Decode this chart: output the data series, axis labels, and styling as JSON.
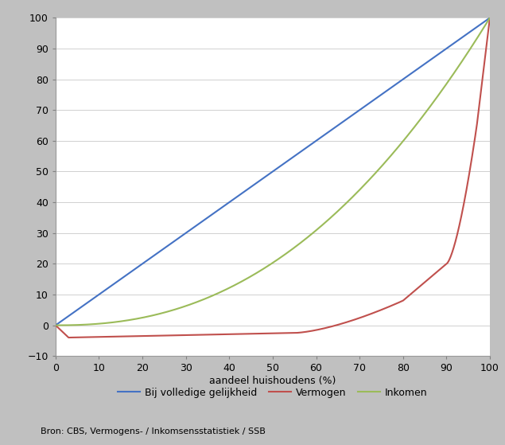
{
  "xlabel": "aandeel huishoudens (%)",
  "xlim": [
    0,
    100
  ],
  "ylim": [
    -10,
    100
  ],
  "xticks": [
    0,
    10,
    20,
    30,
    40,
    50,
    60,
    70,
    80,
    90,
    100
  ],
  "yticks": [
    -10,
    0,
    10,
    20,
    30,
    40,
    50,
    60,
    70,
    80,
    90,
    100
  ],
  "line_equality_color": "#4472C4",
  "line_vermogen_color": "#C0504D",
  "line_inkomen_color": "#9BBB59",
  "line_width": 1.5,
  "legend_labels": [
    "Bij volledige gelijkheid",
    "Vermogen",
    "Inkomen"
  ],
  "source_text": "Bron: CBS, Vermogens- / Inkomsensstatistiek / SSB",
  "background_color": "#C0C0C0",
  "plot_background_color": "#FFFFFF",
  "grid_color": "#D0D0D0",
  "tick_fontsize": 9,
  "legend_fontsize": 9,
  "source_fontsize": 8,
  "xlabel_fontsize": 9
}
